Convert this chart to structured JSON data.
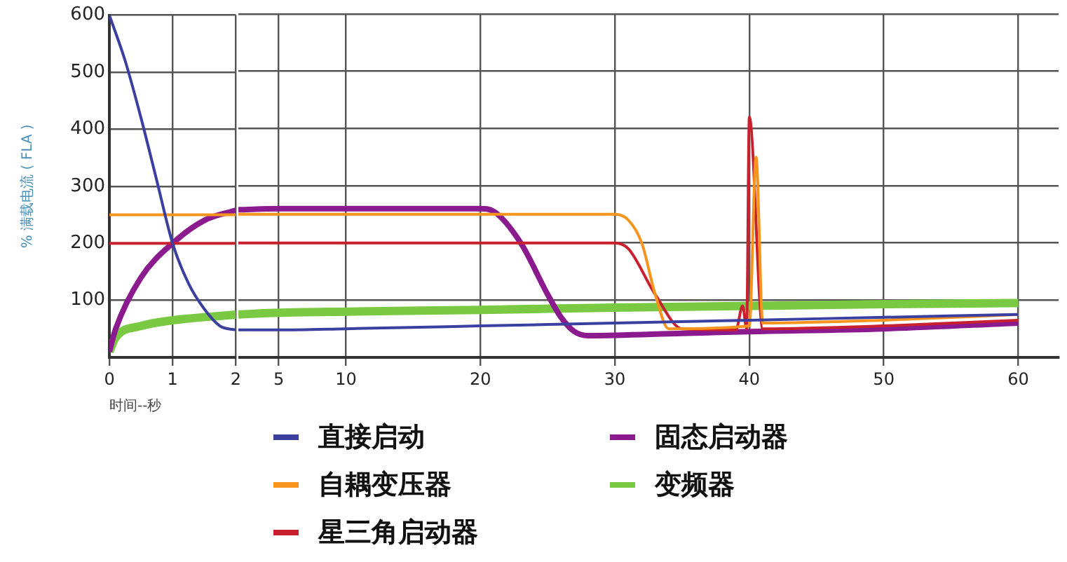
{
  "chart_data": [
    {
      "type": "line",
      "xlabel": "时间--秒",
      "ylabel": "% 满载电流 ( FLA )",
      "xlim": [
        0,
        2
      ],
      "xticks": [
        0,
        1,
        2
      ],
      "ylim": [
        0,
        600
      ],
      "yticks": [
        {
          "value": 0,
          "label": null
        },
        100,
        200,
        300,
        400,
        500,
        600
      ],
      "grid": true,
      "marker": "none",
      "line_style": "solid",
      "series": [
        {
          "color": "#3b3fa0",
          "x": [
            0,
            0.25,
            0.5,
            0.75,
            1,
            1.25,
            1.5,
            1.75,
            2
          ],
          "values": [
            600,
            520,
            420,
            310,
            200,
            130,
            85,
            55,
            48
          ]
        },
        {
          "color": "#f7941d",
          "x": [
            0,
            2
          ],
          "values": [
            250,
            250
          ]
        },
        {
          "color": "#c8202f",
          "x": [
            0,
            2
          ],
          "values": [
            200,
            200
          ]
        },
        {
          "color": "#8b1a8f",
          "x": [
            0,
            0.1,
            0.5,
            1,
            1.5,
            2
          ],
          "values": [
            10,
            50,
            140,
            200,
            240,
            258
          ]
        },
        {
          "color": "#7ac943",
          "x": [
            0,
            0.1,
            0.5,
            1,
            2
          ],
          "values": [
            10,
            35,
            55,
            65,
            75
          ]
        }
      ]
    },
    {
      "type": "line",
      "xlim": [
        2,
        63
      ],
      "xticks": [
        5,
        10,
        20,
        30,
        40,
        50,
        60
      ],
      "ylim": [
        0,
        600
      ],
      "yticks": [
        0,
        100,
        200,
        300,
        400,
        500,
        600
      ],
      "tick_labels": "x",
      "grid": true,
      "legend": "bottom",
      "marker": "none",
      "line_style": "solid",
      "series": [
        {
          "name": "直接启动",
          "color": "#3b3fa0",
          "x": [
            2,
            5,
            10,
            20,
            30,
            40,
            50,
            60
          ],
          "values": [
            48,
            48,
            50,
            55,
            60,
            65,
            70,
            75
          ]
        },
        {
          "name": "自耦变压器",
          "color": "#f7941d",
          "x": [
            2,
            30,
            31,
            32,
            33,
            34,
            40,
            40.5,
            41,
            50,
            60
          ],
          "values": [
            250,
            250,
            240,
            200,
            110,
            50,
            55,
            350,
            60,
            65,
            75
          ]
        },
        {
          "name": "星三角启动器",
          "color": "#c8202f",
          "x": [
            2,
            30,
            31,
            33,
            35,
            39,
            39.5,
            39.8,
            40,
            41,
            50,
            60
          ],
          "values": [
            200,
            200,
            190,
            110,
            50,
            48,
            90,
            50,
            420,
            50,
            55,
            65
          ]
        },
        {
          "name": "固态启动器",
          "color": "#8b1a8f",
          "x": [
            2,
            5,
            20,
            21,
            23,
            25,
            26,
            27,
            28,
            35,
            40,
            50,
            60
          ],
          "values": [
            258,
            260,
            260,
            255,
            200,
            110,
            70,
            45,
            38,
            42,
            45,
            50,
            60
          ]
        },
        {
          "name": "变频器",
          "color": "#7ac943",
          "x": [
            2,
            5,
            10,
            20,
            30,
            40,
            50,
            60
          ],
          "values": [
            75,
            78,
            80,
            83,
            87,
            90,
            93,
            95
          ]
        }
      ]
    }
  ]
}
